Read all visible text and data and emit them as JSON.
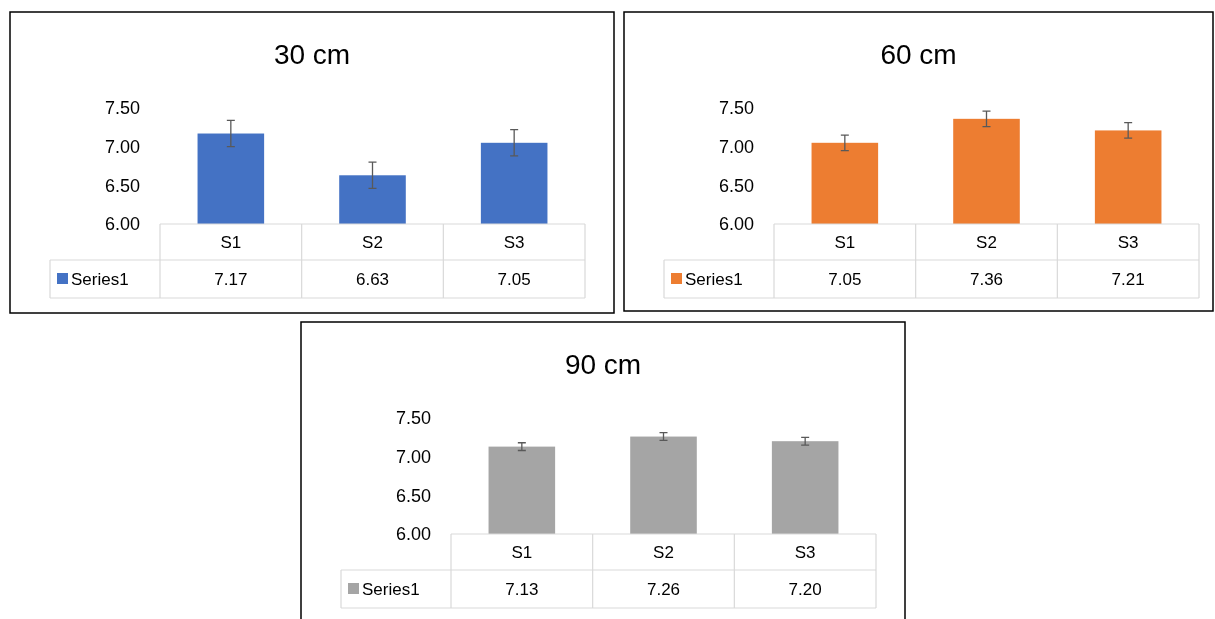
{
  "chart_data": [
    {
      "type": "bar",
      "title": "30 cm",
      "categories": [
        "S1",
        "S2",
        "S3"
      ],
      "series": [
        {
          "name": "Series1",
          "color": "#4472c4",
          "values": [
            7.17,
            6.63,
            7.05
          ],
          "errors": [
            0.17,
            0.17,
            0.17
          ],
          "value_labels": [
            "7.17",
            "6.63",
            "7.05"
          ]
        }
      ],
      "ylim": [
        6,
        7.5
      ],
      "yticks": [
        {
          "value": 6,
          "label": "6.00"
        },
        {
          "value": 6.5,
          "label": "6.50"
        },
        {
          "value": 7,
          "label": "7.00"
        },
        {
          "value": 7.5,
          "label": "7.50"
        }
      ],
      "legend": "bottom"
    },
    {
      "type": "bar",
      "title": "60 cm",
      "categories": [
        "S1",
        "S2",
        "S3"
      ],
      "series": [
        {
          "name": "Series1",
          "color": "#ed7d31",
          "values": [
            7.05,
            7.36,
            7.21
          ],
          "errors": [
            0.1,
            0.1,
            0.1
          ],
          "value_labels": [
            "7.05",
            "7.36",
            "7.21"
          ]
        }
      ],
      "ylim": [
        6,
        7.5
      ],
      "yticks": [
        {
          "value": 6,
          "label": "6.00"
        },
        {
          "value": 6.5,
          "label": "6.50"
        },
        {
          "value": 7,
          "label": "7.00"
        },
        {
          "value": 7.5,
          "label": "7.50"
        }
      ],
      "legend": "bottom"
    },
    {
      "type": "bar",
      "title": "90 cm",
      "categories": [
        "S1",
        "S2",
        "S3"
      ],
      "series": [
        {
          "name": "Series1",
          "color": "#a5a5a5",
          "values": [
            7.13,
            7.26,
            7.2
          ],
          "errors": [
            0.05,
            0.05,
            0.05
          ],
          "value_labels": [
            "7.13",
            "7.26",
            "7.20"
          ]
        }
      ],
      "ylim": [
        6,
        7.5
      ],
      "yticks": [
        {
          "value": 6,
          "label": "6.00"
        },
        {
          "value": 6.5,
          "label": "6.50"
        },
        {
          "value": 7,
          "label": "7.00"
        },
        {
          "value": 7.5,
          "label": "7.50"
        }
      ],
      "legend": "bottom"
    }
  ]
}
